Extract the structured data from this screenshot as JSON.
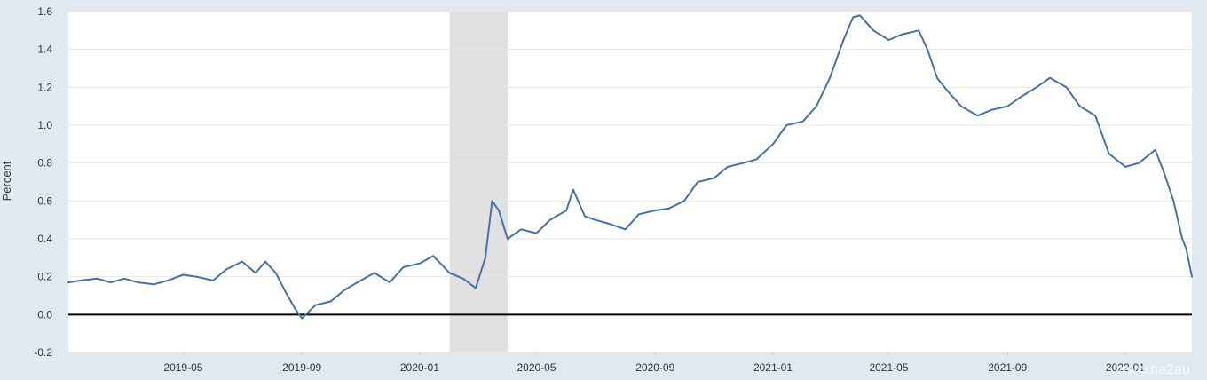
{
  "chart_data": {
    "type": "line",
    "ylabel": "Percent",
    "ylim": [
      -0.2,
      1.6
    ],
    "xlim": [
      "2019-01-02",
      "2022-03-11"
    ],
    "y_ticks": [
      "-0.2",
      "0.0",
      "0.2",
      "0.4",
      "0.6",
      "0.8",
      "1.0",
      "1.2",
      "1.4",
      "1.6"
    ],
    "y_tick_values": [
      -0.2,
      0.0,
      0.2,
      0.4,
      0.6,
      0.8,
      1.0,
      1.2,
      1.4,
      1.6
    ],
    "x_ticks": [
      {
        "date": "2019-05-01",
        "label": "2019-05"
      },
      {
        "date": "2019-09-01",
        "label": "2019-09"
      },
      {
        "date": "2020-01-01",
        "label": "2020-01"
      },
      {
        "date": "2020-05-01",
        "label": "2020-05"
      },
      {
        "date": "2020-09-01",
        "label": "2020-09"
      },
      {
        "date": "2021-01-01",
        "label": "2021-01"
      },
      {
        "date": "2021-05-01",
        "label": "2021-05"
      },
      {
        "date": "2021-09-01",
        "label": "2021-09"
      },
      {
        "date": "2022-01-01",
        "label": "2022-01"
      }
    ],
    "grid": true,
    "zero_line": true,
    "recession_shading": {
      "start": "2020-02-01",
      "end": "2020-04-01"
    },
    "series": [
      {
        "color": "#4572a7",
        "points": [
          [
            "2019-01-02",
            0.17
          ],
          [
            "2019-01-15",
            0.18
          ],
          [
            "2019-02-01",
            0.19
          ],
          [
            "2019-02-15",
            0.17
          ],
          [
            "2019-03-01",
            0.19
          ],
          [
            "2019-03-15",
            0.17
          ],
          [
            "2019-04-01",
            0.16
          ],
          [
            "2019-04-15",
            0.18
          ],
          [
            "2019-05-01",
            0.21
          ],
          [
            "2019-05-15",
            0.2
          ],
          [
            "2019-06-01",
            0.18
          ],
          [
            "2019-06-15",
            0.24
          ],
          [
            "2019-07-01",
            0.28
          ],
          [
            "2019-07-15",
            0.22
          ],
          [
            "2019-07-25",
            0.28
          ],
          [
            "2019-08-05",
            0.22
          ],
          [
            "2019-08-15",
            0.12
          ],
          [
            "2019-08-25",
            0.03
          ],
          [
            "2019-09-01",
            -0.02
          ],
          [
            "2019-09-15",
            0.05
          ],
          [
            "2019-10-01",
            0.07
          ],
          [
            "2019-10-15",
            0.13
          ],
          [
            "2019-11-01",
            0.18
          ],
          [
            "2019-11-15",
            0.22
          ],
          [
            "2019-12-01",
            0.17
          ],
          [
            "2019-12-15",
            0.25
          ],
          [
            "2020-01-01",
            0.27
          ],
          [
            "2020-01-15",
            0.31
          ],
          [
            "2020-02-01",
            0.22
          ],
          [
            "2020-02-15",
            0.19
          ],
          [
            "2020-02-28",
            0.14
          ],
          [
            "2020-03-09",
            0.3
          ],
          [
            "2020-03-16",
            0.6
          ],
          [
            "2020-03-23",
            0.55
          ],
          [
            "2020-04-01",
            0.4
          ],
          [
            "2020-04-15",
            0.45
          ],
          [
            "2020-05-01",
            0.43
          ],
          [
            "2020-05-15",
            0.5
          ],
          [
            "2020-06-01",
            0.55
          ],
          [
            "2020-06-08",
            0.66
          ],
          [
            "2020-06-20",
            0.52
          ],
          [
            "2020-07-01",
            0.5
          ],
          [
            "2020-07-15",
            0.48
          ],
          [
            "2020-08-01",
            0.45
          ],
          [
            "2020-08-15",
            0.53
          ],
          [
            "2020-09-01",
            0.55
          ],
          [
            "2020-09-15",
            0.56
          ],
          [
            "2020-10-01",
            0.6
          ],
          [
            "2020-10-15",
            0.7
          ],
          [
            "2020-11-01",
            0.72
          ],
          [
            "2020-11-15",
            0.78
          ],
          [
            "2020-12-01",
            0.8
          ],
          [
            "2020-12-15",
            0.82
          ],
          [
            "2021-01-01",
            0.9
          ],
          [
            "2021-01-15",
            1.0
          ],
          [
            "2021-02-01",
            1.02
          ],
          [
            "2021-02-15",
            1.1
          ],
          [
            "2021-03-01",
            1.25
          ],
          [
            "2021-03-15",
            1.45
          ],
          [
            "2021-03-25",
            1.57
          ],
          [
            "2021-04-01",
            1.58
          ],
          [
            "2021-04-15",
            1.5
          ],
          [
            "2021-05-01",
            1.45
          ],
          [
            "2021-05-15",
            1.48
          ],
          [
            "2021-06-01",
            1.5
          ],
          [
            "2021-06-10",
            1.4
          ],
          [
            "2021-06-20",
            1.25
          ],
          [
            "2021-07-01",
            1.18
          ],
          [
            "2021-07-15",
            1.1
          ],
          [
            "2021-08-01",
            1.05
          ],
          [
            "2021-08-15",
            1.08
          ],
          [
            "2021-09-01",
            1.1
          ],
          [
            "2021-09-15",
            1.15
          ],
          [
            "2021-10-01",
            1.2
          ],
          [
            "2021-10-15",
            1.25
          ],
          [
            "2021-11-01",
            1.2
          ],
          [
            "2021-11-15",
            1.1
          ],
          [
            "2021-12-01",
            1.05
          ],
          [
            "2021-12-15",
            0.85
          ],
          [
            "2022-01-01",
            0.78
          ],
          [
            "2022-01-15",
            0.8
          ],
          [
            "2022-02-01",
            0.87
          ],
          [
            "2022-02-10",
            0.75
          ],
          [
            "2022-02-20",
            0.6
          ],
          [
            "2022-03-01",
            0.4
          ],
          [
            "2022-03-05",
            0.35
          ],
          [
            "2022-03-11",
            0.2
          ]
        ]
      }
    ]
  },
  "colors": {
    "page_background": "#e1e9f0",
    "plot_background": "#ffffff",
    "grid": "#e6e6e6",
    "zero_line": "#000000",
    "recession": "#e0e0e0",
    "line": "#4572a7"
  },
  "watermark": "www.na2au"
}
